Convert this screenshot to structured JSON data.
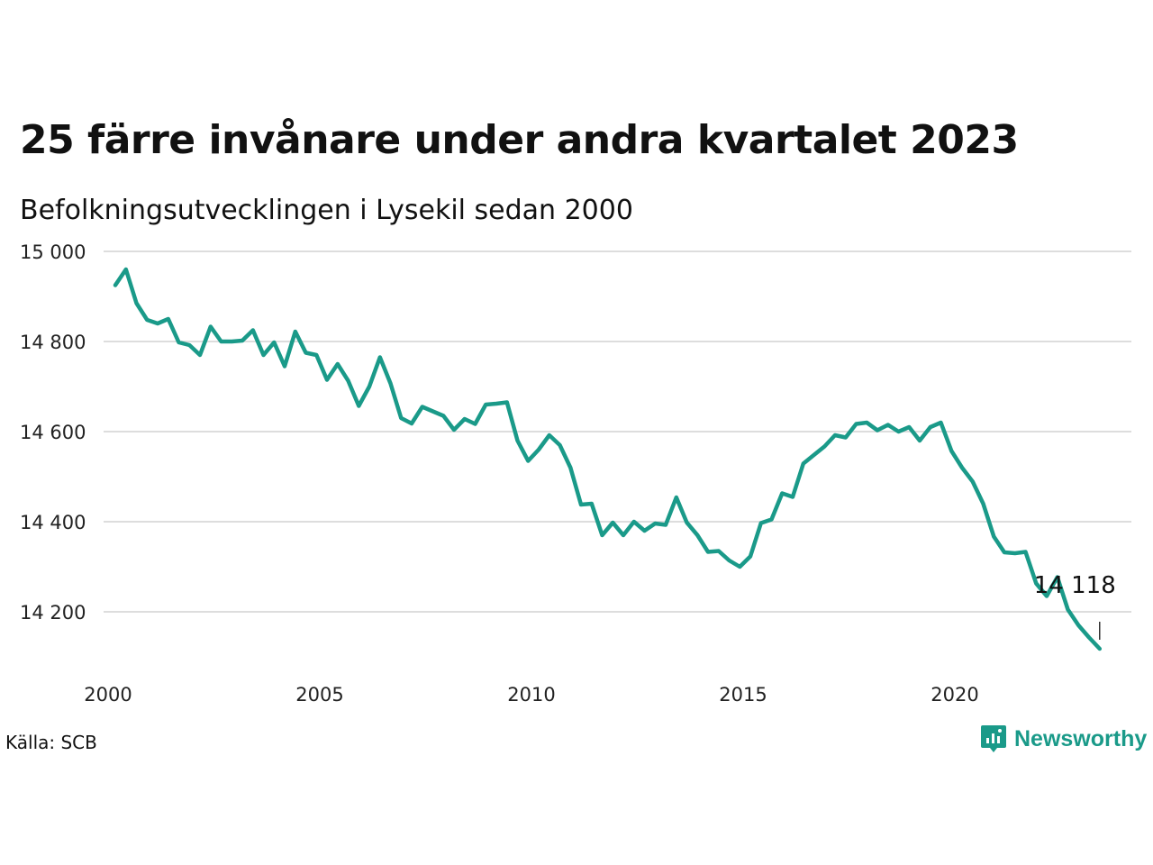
{
  "chart_data": {
    "type": "line",
    "title": "25 färre invånare under andra kvartalet 2023",
    "subtitle": "Befolkningsutvecklingen i Lysekil sedan 2000",
    "xlabel": "",
    "ylabel": "",
    "ylim": [
      14100,
      15000
    ],
    "xlim": [
      2000,
      2024
    ],
    "y_ticks": [
      {
        "value": 15000,
        "label": "15 000"
      },
      {
        "value": 14800,
        "label": "14 800"
      },
      {
        "value": 14600,
        "label": "14 600"
      },
      {
        "value": 14400,
        "label": "14 400"
      },
      {
        "value": 14200,
        "label": "14 200"
      }
    ],
    "x_ticks": [
      {
        "value": 2000,
        "label": "2000"
      },
      {
        "value": 2005,
        "label": "2005"
      },
      {
        "value": 2010,
        "label": "2010"
      },
      {
        "value": 2015,
        "label": "2015"
      },
      {
        "value": 2020,
        "label": "2020"
      }
    ],
    "grid": "horizontal",
    "line_color": "#1a9a89",
    "grid_color": "#dddddd",
    "end_label": {
      "value": 14118,
      "label": "14 118"
    },
    "series": [
      {
        "x": [
          2000.0,
          2000.25,
          2000.5,
          2000.75,
          2001.0,
          2001.25,
          2001.5,
          2001.75,
          2002.0,
          2002.25,
          2002.5,
          2002.75,
          2003.0,
          2003.25,
          2003.5,
          2003.75,
          2004.0,
          2004.25,
          2004.5,
          2004.75,
          2005.0,
          2005.25,
          2005.5,
          2005.75,
          2006.0,
          2006.25,
          2006.5,
          2006.75,
          2007.0,
          2007.25,
          2007.5,
          2007.75,
          2008.0,
          2008.25,
          2008.5,
          2008.75,
          2009.0,
          2009.25,
          2009.5,
          2009.75,
          2010.0,
          2010.25,
          2010.5,
          2010.75,
          2011.0,
          2011.25,
          2011.5,
          2011.75,
          2012.0,
          2012.25,
          2012.5,
          2012.75,
          2013.0,
          2013.25,
          2013.5,
          2013.75,
          2014.0,
          2014.25,
          2014.5,
          2014.75,
          2015.0,
          2015.25,
          2015.5,
          2015.75,
          2016.0,
          2016.25,
          2016.5,
          2016.75,
          2017.0,
          2017.25,
          2017.5,
          2017.75,
          2018.0,
          2018.25,
          2018.5,
          2018.75,
          2019.0,
          2019.25,
          2019.5,
          2019.75,
          2020.0,
          2020.25,
          2020.5,
          2020.75,
          2021.0,
          2021.25,
          2021.5,
          2021.75,
          2022.0,
          2022.25,
          2022.5,
          2022.75,
          2023.0,
          2023.25
        ],
        "values": [
          14925,
          14960,
          14885,
          14848,
          14840,
          14850,
          14798,
          14792,
          14770,
          14833,
          14800,
          14800,
          14802,
          14825,
          14770,
          14798,
          14745,
          14822,
          14775,
          14770,
          14715,
          14750,
          14713,
          14657,
          14700,
          14765,
          14707,
          14630,
          14618,
          14655,
          14645,
          14635,
          14604,
          14628,
          14617,
          14660,
          14662,
          14665,
          14580,
          14535,
          14560,
          14592,
          14570,
          14520,
          14438,
          14440,
          14370,
          14398,
          14370,
          14400,
          14380,
          14396,
          14393,
          14454,
          14398,
          14370,
          14333,
          14335,
          14314,
          14300,
          14323,
          14397,
          14405,
          14463,
          14455,
          14529,
          14548,
          14567,
          14592,
          14587,
          14617,
          14620,
          14603,
          14615,
          14600,
          14610,
          14580,
          14610,
          14620,
          14557,
          14520,
          14489,
          14440,
          14367,
          14332,
          14330,
          14333,
          14263,
          14235,
          14277,
          14205,
          14170,
          14143,
          14118
        ]
      }
    ]
  },
  "source": "Källa: SCB",
  "brand": {
    "name": "Newsworthy",
    "icon": "newsworthy-logo-icon",
    "color": "#1a9a89"
  }
}
